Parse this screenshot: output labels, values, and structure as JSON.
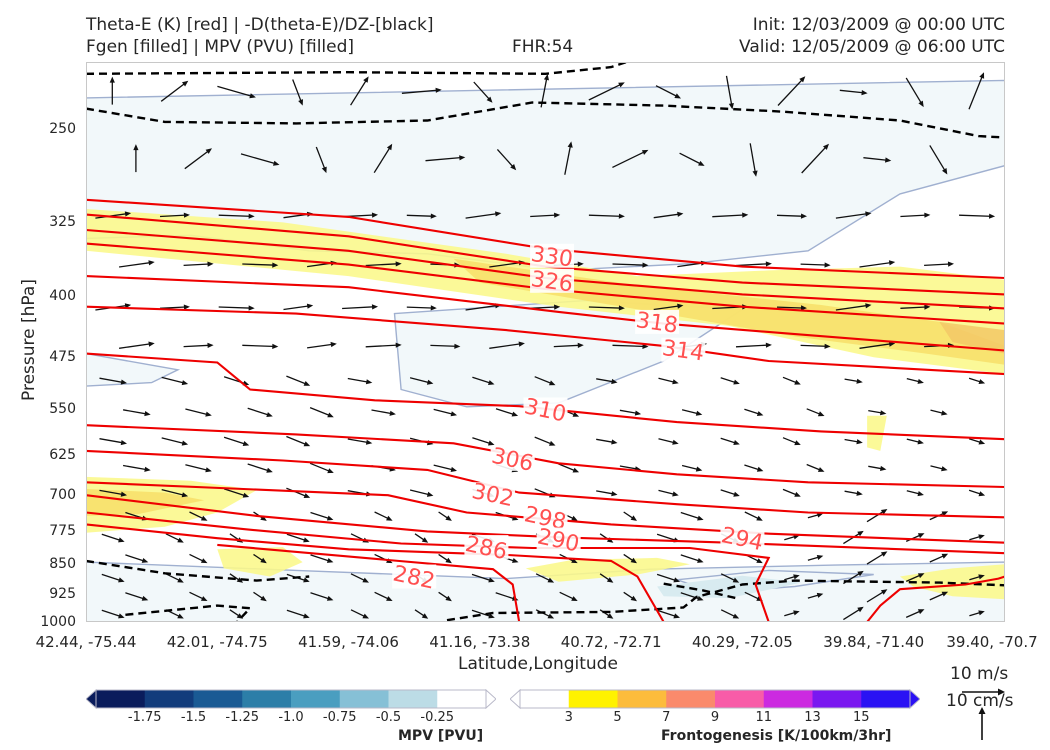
{
  "header": {
    "title_line1": "Theta-E (K) [red] | -D(theta-E)/DZ-[black]",
    "title_line2": "Fgen [filled] | MPV (PVU) [filled]",
    "fhr": "FHR:54",
    "init": "Init: 12/03/2009 @ 00:00 UTC",
    "valid": "Valid: 12/05/2009 @ 06:00 UTC"
  },
  "colors": {
    "theta_e": "#ee0000",
    "ddz": "#000000",
    "mpv_contour": "#a0b0d0",
    "mpv_fill": "#f2f8fa",
    "mpv_fill_dark": "#d8ebf0",
    "fgen_fill": "#fbf88a",
    "fgen_fill_strong": "#f7df6a",
    "fgen_fill_peak": "#f3c866"
  },
  "chart_data": {
    "type": "cross-section",
    "xlabel": "Latitude,Longitude",
    "ylabel": "Pressure [hPa]",
    "x_ticks": [
      "42.44, -75.44",
      "42.01, -74.75",
      "41.59, -74.06",
      "41.16, -73.38",
      "40.72, -72.71",
      "40.29, -72.05",
      "39.84, -71.40",
      "39.40, -70.7"
    ],
    "y_ticks": [
      250,
      325,
      400,
      475,
      550,
      625,
      700,
      775,
      850,
      925,
      1000
    ],
    "ylim": [
      1000,
      200
    ],
    "y_scale": "log",
    "theta_e_labels": [
      {
        "label": "330",
        "xi": 3.55,
        "p": 357
      },
      {
        "label": "326",
        "xi": 3.55,
        "p": 383
      },
      {
        "label": "318",
        "xi": 4.35,
        "p": 430
      },
      {
        "label": "314",
        "xi": 4.55,
        "p": 465
      },
      {
        "label": "310",
        "xi": 3.5,
        "p": 550
      },
      {
        "label": "306",
        "xi": 3.25,
        "p": 632
      },
      {
        "label": "302",
        "xi": 3.1,
        "p": 698
      },
      {
        "label": "298",
        "xi": 3.5,
        "p": 745
      },
      {
        "label": "290",
        "xi": 3.6,
        "p": 793
      },
      {
        "label": "294",
        "xi": 5.0,
        "p": 790
      },
      {
        "label": "286",
        "xi": 3.05,
        "p": 810
      },
      {
        "label": "282",
        "xi": 2.5,
        "p": 880
      }
    ],
    "colorbar_mpv": {
      "title": "MPV [PVU]",
      "labels": [
        "-1.75",
        "-1.5",
        "-1.25",
        "-1.0",
        "-0.75",
        "-0.5",
        "-0.25"
      ],
      "colors": [
        "#0a1c5c",
        "#123c7c",
        "#1a5a94",
        "#2c7ea8",
        "#4a9ec0",
        "#86c0d6",
        "#bcdce6",
        "#ffffff"
      ]
    },
    "colorbar_fgen": {
      "title": "Frontogenesis [K/100km/3hr]",
      "labels": [
        "3",
        "5",
        "7",
        "9",
        "11",
        "13",
        "15"
      ],
      "colors": [
        "#ffffff",
        "#fff200",
        "#fcbc3c",
        "#fa8a6c",
        "#f85ca8",
        "#cc2ae0",
        "#7a18f0",
        "#2a12f4"
      ]
    },
    "quiver_key": {
      "label_horizontal": "10 m/s",
      "label_vertical": "10 cm/s"
    }
  }
}
